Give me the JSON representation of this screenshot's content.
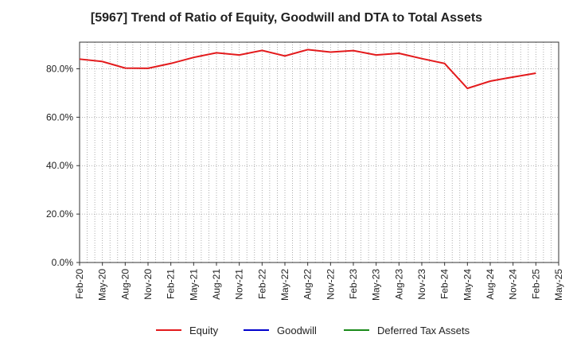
{
  "chart_data": {
    "type": "line",
    "title": "[5967]  Trend of Ratio of Equity, Goodwill and DTA to Total Assets",
    "xlabel": "",
    "ylabel": "",
    "x_tick_labels": [
      "Feb-20",
      "May-20",
      "Aug-20",
      "Nov-20",
      "Feb-21",
      "May-21",
      "Aug-21",
      "Nov-21",
      "Feb-22",
      "May-22",
      "Aug-22",
      "Nov-22",
      "Feb-23",
      "May-23",
      "Aug-23",
      "Nov-23",
      "Feb-24",
      "May-24",
      "Aug-24",
      "Nov-24",
      "Feb-25",
      "May-25"
    ],
    "y_tick_labels": [
      "0.0%",
      "20.0%",
      "40.0%",
      "60.0%",
      "80.0%"
    ],
    "y_ticks": [
      0,
      20,
      40,
      60,
      80
    ],
    "ylim": [
      0,
      91
    ],
    "grid": true,
    "legend_position": "bottom",
    "series": [
      {
        "name": "Equity",
        "color": "#e31a1c",
        "values": [
          84.0,
          83.0,
          80.3,
          80.2,
          82.2,
          84.7,
          86.6,
          85.7,
          87.6,
          85.3,
          87.9,
          86.9,
          87.5,
          85.7,
          86.4,
          84.2,
          82.2,
          71.9,
          74.9,
          76.6,
          78.2
        ]
      },
      {
        "name": "Goodwill",
        "color": "#0000cc",
        "values": []
      },
      {
        "name": "Deferred Tax Assets",
        "color": "#1a8a1a",
        "values": []
      }
    ]
  }
}
